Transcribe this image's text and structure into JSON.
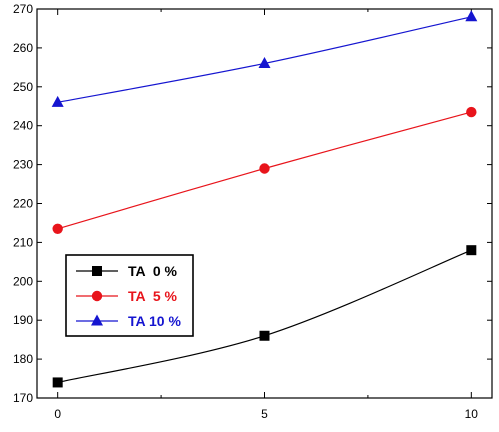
{
  "chart_data": {
    "type": "line",
    "title": "",
    "xlabel": "",
    "ylabel": "",
    "x": [
      0,
      5,
      10
    ],
    "xticks": [
      0,
      5,
      10
    ],
    "xtick_labels": [
      "0",
      "5",
      "10"
    ],
    "xlim": [
      -0.5,
      10.5
    ],
    "ylim": [
      170,
      270
    ],
    "yticks": [
      170,
      180,
      190,
      200,
      210,
      220,
      230,
      240,
      250,
      260,
      270
    ],
    "ytick_labels": [
      "170",
      "180",
      "190",
      "200",
      "210",
      "220",
      "230",
      "240",
      "250",
      "260",
      "270"
    ],
    "grid": false,
    "legend_position": "lower-left",
    "series": [
      {
        "name": "TA  0 %",
        "values": [
          174,
          186,
          208
        ],
        "color": "#000000",
        "marker": "square"
      },
      {
        "name": "TA  5 %",
        "values": [
          213.5,
          229,
          243.5
        ],
        "color": "#e8141b",
        "marker": "circle"
      },
      {
        "name": "TA 10 %",
        "values": [
          246,
          256,
          268
        ],
        "color": "#1515d0",
        "marker": "triangle"
      }
    ]
  }
}
